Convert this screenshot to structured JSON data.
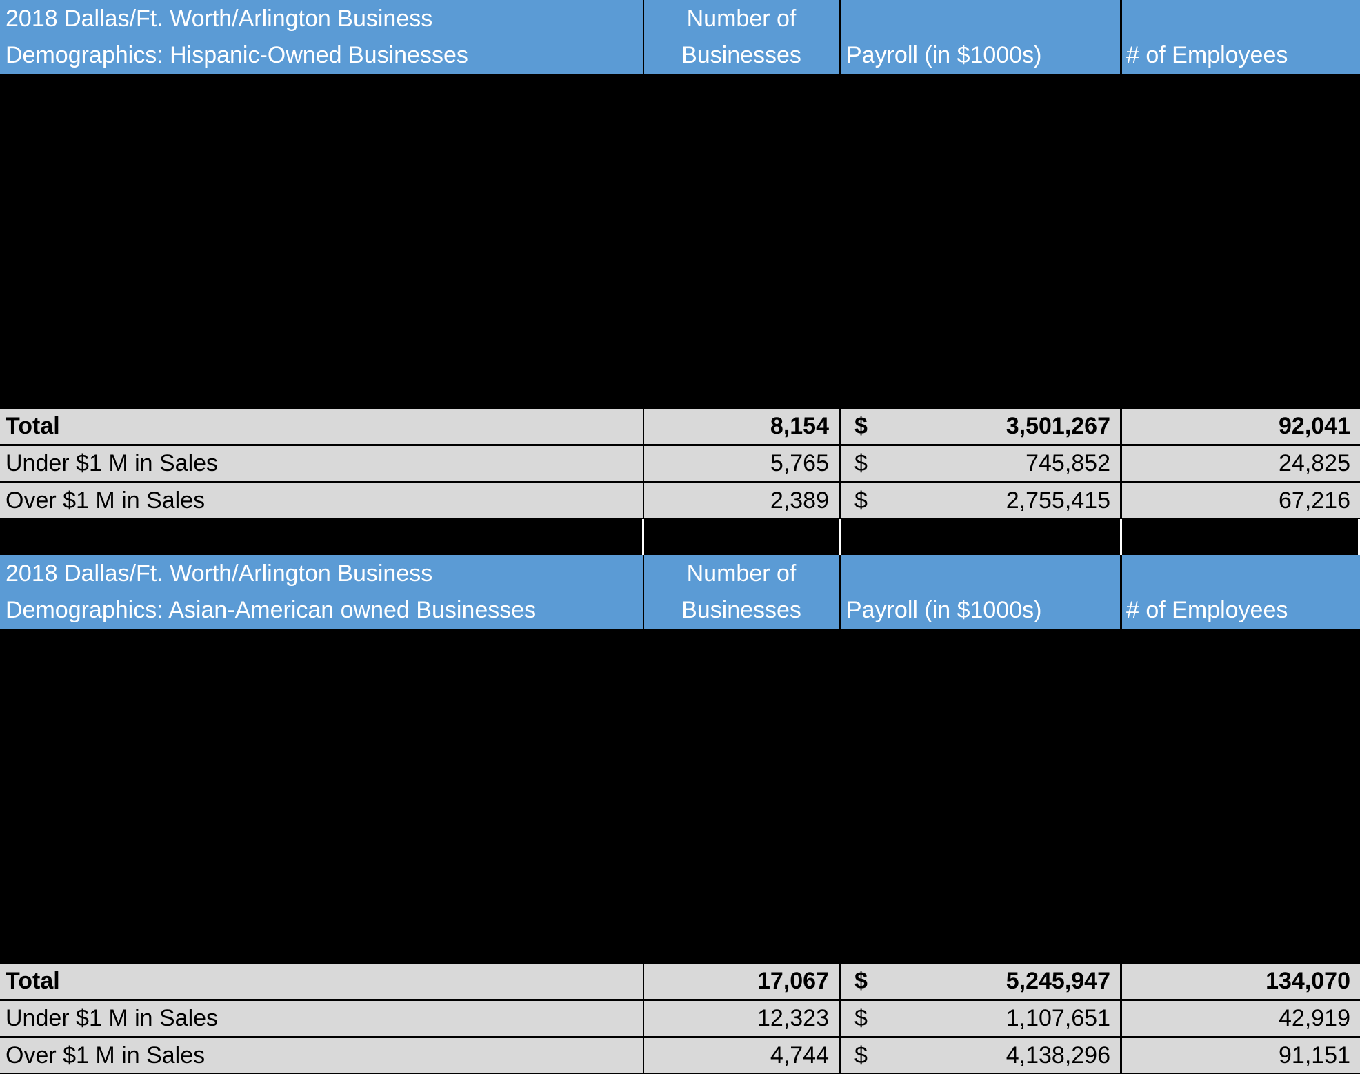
{
  "tables": [
    {
      "title_line1": "2018 Dallas/Ft. Worth/Arlington Business",
      "title_line2": "Demographics: Hispanic-Owned Businesses",
      "col_businesses_line1": "Number of",
      "col_businesses_line2": "Businesses",
      "col_payroll": "Payroll (in $1000s)",
      "col_employees": "# of Employees",
      "rows": [
        {
          "label": "Total",
          "businesses": "8,154",
          "currency": "$",
          "payroll": "3,501,267",
          "employees": "92,041"
        },
        {
          "label": "Under $1 M in Sales",
          "businesses": "5,765",
          "currency": "$",
          "payroll": "745,852",
          "employees": "24,825"
        },
        {
          "label": "Over $1 M in Sales",
          "businesses": "2,389",
          "currency": "$",
          "payroll": "2,755,415",
          "employees": "67,216"
        }
      ]
    },
    {
      "title_line1": "2018 Dallas/Ft. Worth/Arlington Business",
      "title_line2": "Demographics: Asian-American owned Businesses",
      "col_businesses_line1": "Number of",
      "col_businesses_line2": "Businesses",
      "col_payroll": "Payroll (in $1000s)",
      "col_employees": "# of Employees",
      "rows": [
        {
          "label": "Total",
          "businesses": "17,067",
          "currency": "$",
          "payroll": "5,245,947",
          "employees": "134,070"
        },
        {
          "label": "Under $1 M in Sales",
          "businesses": "12,323",
          "currency": "$",
          "payroll": "1,107,651",
          "employees": "42,919"
        },
        {
          "label": "Over $1 M in Sales",
          "businesses": "4,744",
          "currency": "$",
          "payroll": "4,138,296",
          "employees": "91,151"
        }
      ]
    }
  ]
}
